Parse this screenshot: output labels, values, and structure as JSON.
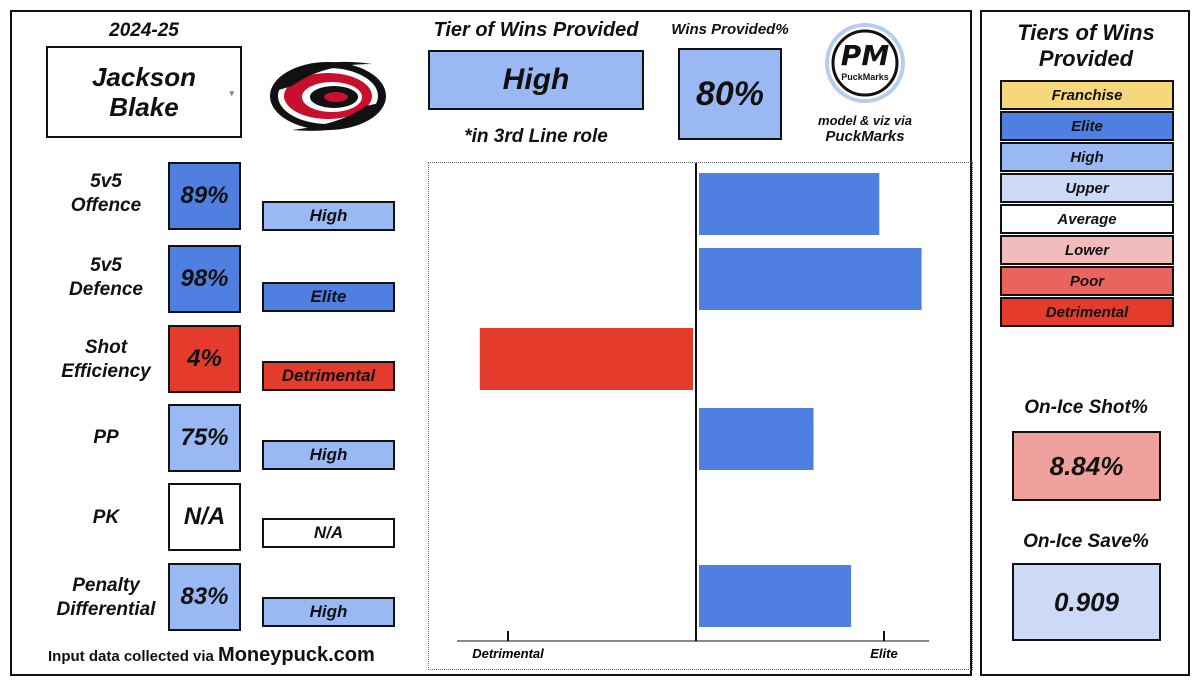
{
  "colors": {
    "franchise": "#f7d77c",
    "elite": "#4f7fe0",
    "high": "#9ab9f4",
    "upper": "#cddaf7",
    "average": "#ffffff",
    "lower": "#f3bcbc",
    "poor": "#e8645c",
    "detrimental": "#e53b2c",
    "onice_shot_bg": "#f0a19d",
    "onice_save_bg": "#cddaf7"
  },
  "header": {
    "season": "2024-25",
    "player_name": "Jackson\nBlake",
    "tier_title": "Tier of Wins Provided",
    "tier_value": "High",
    "tier_note": "*in 3rd Line role",
    "wins_provided_title": "Wins Provided%",
    "wins_provided_value": "80%",
    "logo_text": "PM",
    "logo_subtext": "PuckMarks",
    "credit_line1": "model & viz via",
    "credit_line2": "PuckMarks",
    "team_logo": "carolina-hurricanes-logo"
  },
  "metrics": [
    {
      "label": "5v5\nOffence",
      "pct": "89%",
      "tier": "High",
      "pct_color": "#4f7fe0",
      "tier_color": "#9ab9f4"
    },
    {
      "label": "5v5\nDefence",
      "pct": "98%",
      "tier": "Elite",
      "pct_color": "#4f7fe0",
      "tier_color": "#4f7fe0"
    },
    {
      "label": "Shot\nEfficiency",
      "pct": "4%",
      "tier": "Detrimental",
      "pct_color": "#e53b2c",
      "tier_color": "#e53b2c"
    },
    {
      "label": "PP",
      "pct": "75%",
      "tier": "High",
      "pct_color": "#9ab9f4",
      "tier_color": "#9ab9f4"
    },
    {
      "label": "PK",
      "pct": "N/A",
      "tier": "N/A",
      "pct_color": "#ffffff",
      "tier_color": "#ffffff"
    },
    {
      "label": "Penalty\nDifferential",
      "pct": "83%",
      "tier": "High",
      "pct_color": "#9ab9f4",
      "tier_color": "#9ab9f4"
    }
  ],
  "footer": {
    "prefix": "Input data collected via ",
    "source": "Moneypuck.com"
  },
  "chart_data": {
    "type": "bar",
    "orientation": "horizontal",
    "categories": [
      "5v5 Offence",
      "5v5 Defence",
      "Shot Efficiency",
      "PP",
      "PK",
      "Penalty Differential"
    ],
    "values": [
      89,
      98,
      4,
      75,
      null,
      83
    ],
    "baseline": 50,
    "xlim": [
      0,
      100
    ],
    "x_tick_labels": [
      "Detrimental",
      "Elite"
    ],
    "x_tick_values": [
      10,
      90
    ],
    "grid": false,
    "colors": [
      "#4f7fe0",
      "#4f7fe0",
      "#e53b2c",
      "#4f7fe0",
      "#4f7fe0",
      "#4f7fe0"
    ]
  },
  "legend": {
    "title": "Tiers of Wins\nProvided",
    "items": [
      {
        "label": "Franchise",
        "color": "#f7d77c"
      },
      {
        "label": "Elite",
        "color": "#4f7fe0"
      },
      {
        "label": "High",
        "color": "#9ab9f4"
      },
      {
        "label": "Upper",
        "color": "#cddaf7"
      },
      {
        "label": "Average",
        "color": "#ffffff"
      },
      {
        "label": "Lower",
        "color": "#f3bcbc"
      },
      {
        "label": "Poor",
        "color": "#e8645c"
      },
      {
        "label": "Detrimental",
        "color": "#e53b2c"
      }
    ]
  },
  "onice": {
    "shot_title": "On-Ice Shot%",
    "shot_value": "8.84%",
    "save_title": "On-Ice Save%",
    "save_value": "0.909"
  }
}
